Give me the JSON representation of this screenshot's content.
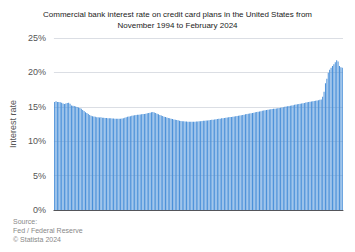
{
  "chart_data": {
    "type": "bar",
    "title": "Commercial bank interest rate on credit card plans in the United States from\nNovember 1994 to February 2024",
    "ylabel": "Interest rate",
    "source": "Source:\nFed / Federal Reserve\n© Statista 2024",
    "color": "#4a90d9",
    "ylim": [
      0,
      25
    ],
    "yticks": [
      {
        "value": 0,
        "label": "0%"
      },
      {
        "value": 5,
        "label": "5%"
      },
      {
        "value": 10,
        "label": "10%"
      },
      {
        "value": 15,
        "label": "15%"
      },
      {
        "value": 20,
        "label": "20%"
      },
      {
        "value": 25,
        "label": "25%"
      }
    ],
    "grid": true,
    "tick_labels": "y",
    "values": [
      15.71,
      15.82,
      15.71,
      15.68,
      15.65,
      15.58,
      15.47,
      15.4,
      15.48,
      15.54,
      15.6,
      15.43,
      15.2,
      15.16,
      15.1,
      15.03,
      14.97,
      14.91,
      14.84,
      14.7,
      14.55,
      14.4,
      14.22,
      14.1,
      13.95,
      13.82,
      13.71,
      13.63,
      13.58,
      13.54,
      13.49,
      13.47,
      13.45,
      13.47,
      13.42,
      13.4,
      13.38,
      13.37,
      13.35,
      13.34,
      13.32,
      13.31,
      13.29,
      13.28,
      13.27,
      13.26,
      13.25,
      13.27,
      13.3,
      13.33,
      13.4,
      13.48,
      13.55,
      13.6,
      13.64,
      13.7,
      13.74,
      13.78,
      13.8,
      13.83,
      13.86,
      13.89,
      13.92,
      13.94,
      13.97,
      14.0,
      14.05,
      14.1,
      14.15,
      14.2,
      14.25,
      14.18,
      14.1,
      14.0,
      13.9,
      13.82,
      13.74,
      13.65,
      13.57,
      13.5,
      13.44,
      13.38,
      13.32,
      13.26,
      13.21,
      13.16,
      13.11,
      13.07,
      13.03,
      12.99,
      12.95,
      12.91,
      12.89,
      12.87,
      12.85,
      12.83,
      12.82,
      12.82,
      12.82,
      12.83,
      12.84,
      12.85,
      12.87,
      12.89,
      12.91,
      12.93,
      12.96,
      12.98,
      13.0,
      13.02,
      13.04,
      13.07,
      13.1,
      13.13,
      13.16,
      13.19,
      13.22,
      13.25,
      13.28,
      13.32,
      13.35,
      13.38,
      13.41,
      13.44,
      13.47,
      13.5,
      13.53,
      13.57,
      13.6,
      13.64,
      13.67,
      13.71,
      13.74,
      13.78,
      13.82,
      13.86,
      13.9,
      13.94,
      13.98,
      14.02,
      14.07,
      14.11,
      14.15,
      14.2,
      14.24,
      14.28,
      14.32,
      14.37,
      14.41,
      14.45,
      14.49,
      14.52,
      14.56,
      14.6,
      14.63,
      14.67,
      14.7,
      14.73,
      14.76,
      14.79,
      14.83,
      14.87,
      14.91,
      14.95,
      14.99,
      15.03,
      15.07,
      15.12,
      15.16,
      15.2,
      15.24,
      15.29,
      15.33,
      15.37,
      15.41,
      15.45,
      15.49,
      15.53,
      15.57,
      15.61,
      15.65,
      15.69,
      15.73,
      15.77,
      15.81,
      15.85,
      15.89,
      15.93,
      15.97,
      16.01,
      16.05,
      16.45,
      17.2,
      18.43,
      19.07,
      19.94,
      20.4,
      20.68,
      20.92,
      21.19,
      21.47,
      21.76,
      21.59,
      20.92,
      20.75,
      20.66
    ]
  }
}
